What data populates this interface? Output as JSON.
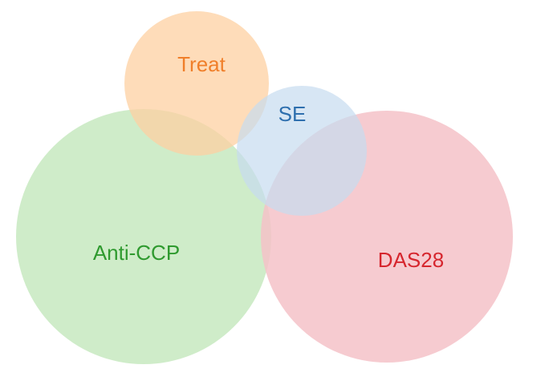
{
  "diagram": {
    "type": "venn",
    "sets": [
      {
        "key": "treat",
        "label": "Treat",
        "fill": "#fdd0a2",
        "label_color": "#f07f2a"
      },
      {
        "key": "se",
        "label": "SE",
        "fill": "#c6dbef",
        "label_color": "#2e6fae"
      },
      {
        "key": "anti_ccp",
        "label": "Anti-CCP",
        "fill": "#c7e9c0",
        "label_color": "#2f9a2f"
      },
      {
        "key": "das28",
        "label": "DAS28",
        "fill": "#f4c2c8",
        "label_color": "#d6262e"
      }
    ]
  }
}
